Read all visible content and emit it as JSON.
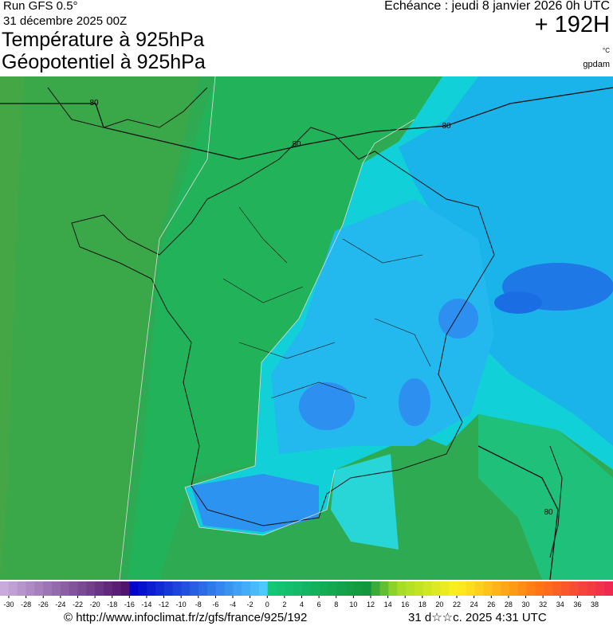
{
  "header": {
    "run": "Run GFS 0.5°",
    "date": "31 décembre 2025 00Z",
    "title_temperature": "Température à 925hPa",
    "title_geopotential": "Géopotentiel à 925hPa",
    "echeance": "Echéance : jeudi 8 janvier 2026 0h UTC",
    "hour": "+ 192H",
    "unit_temperature": "°C",
    "unit_geopotential": "gpdam"
  },
  "map": {
    "contour_labels": [
      "80",
      "80",
      "80",
      "80"
    ]
  },
  "colorbar": {
    "labels": [
      -30,
      -28,
      -26,
      -24,
      -22,
      -20,
      -18,
      -16,
      -14,
      -12,
      -10,
      -8,
      -6,
      -4,
      -2,
      0,
      2,
      4,
      6,
      8,
      10,
      12,
      14,
      16,
      18,
      20,
      22,
      24,
      26,
      28,
      30,
      32,
      34,
      36,
      38
    ]
  },
  "footer": {
    "url": "© http://www.infoclimat.fr/z/gfs/france/925/192",
    "timestamp": "31 d☆☆c. 2025  4:31 UTC"
  }
}
